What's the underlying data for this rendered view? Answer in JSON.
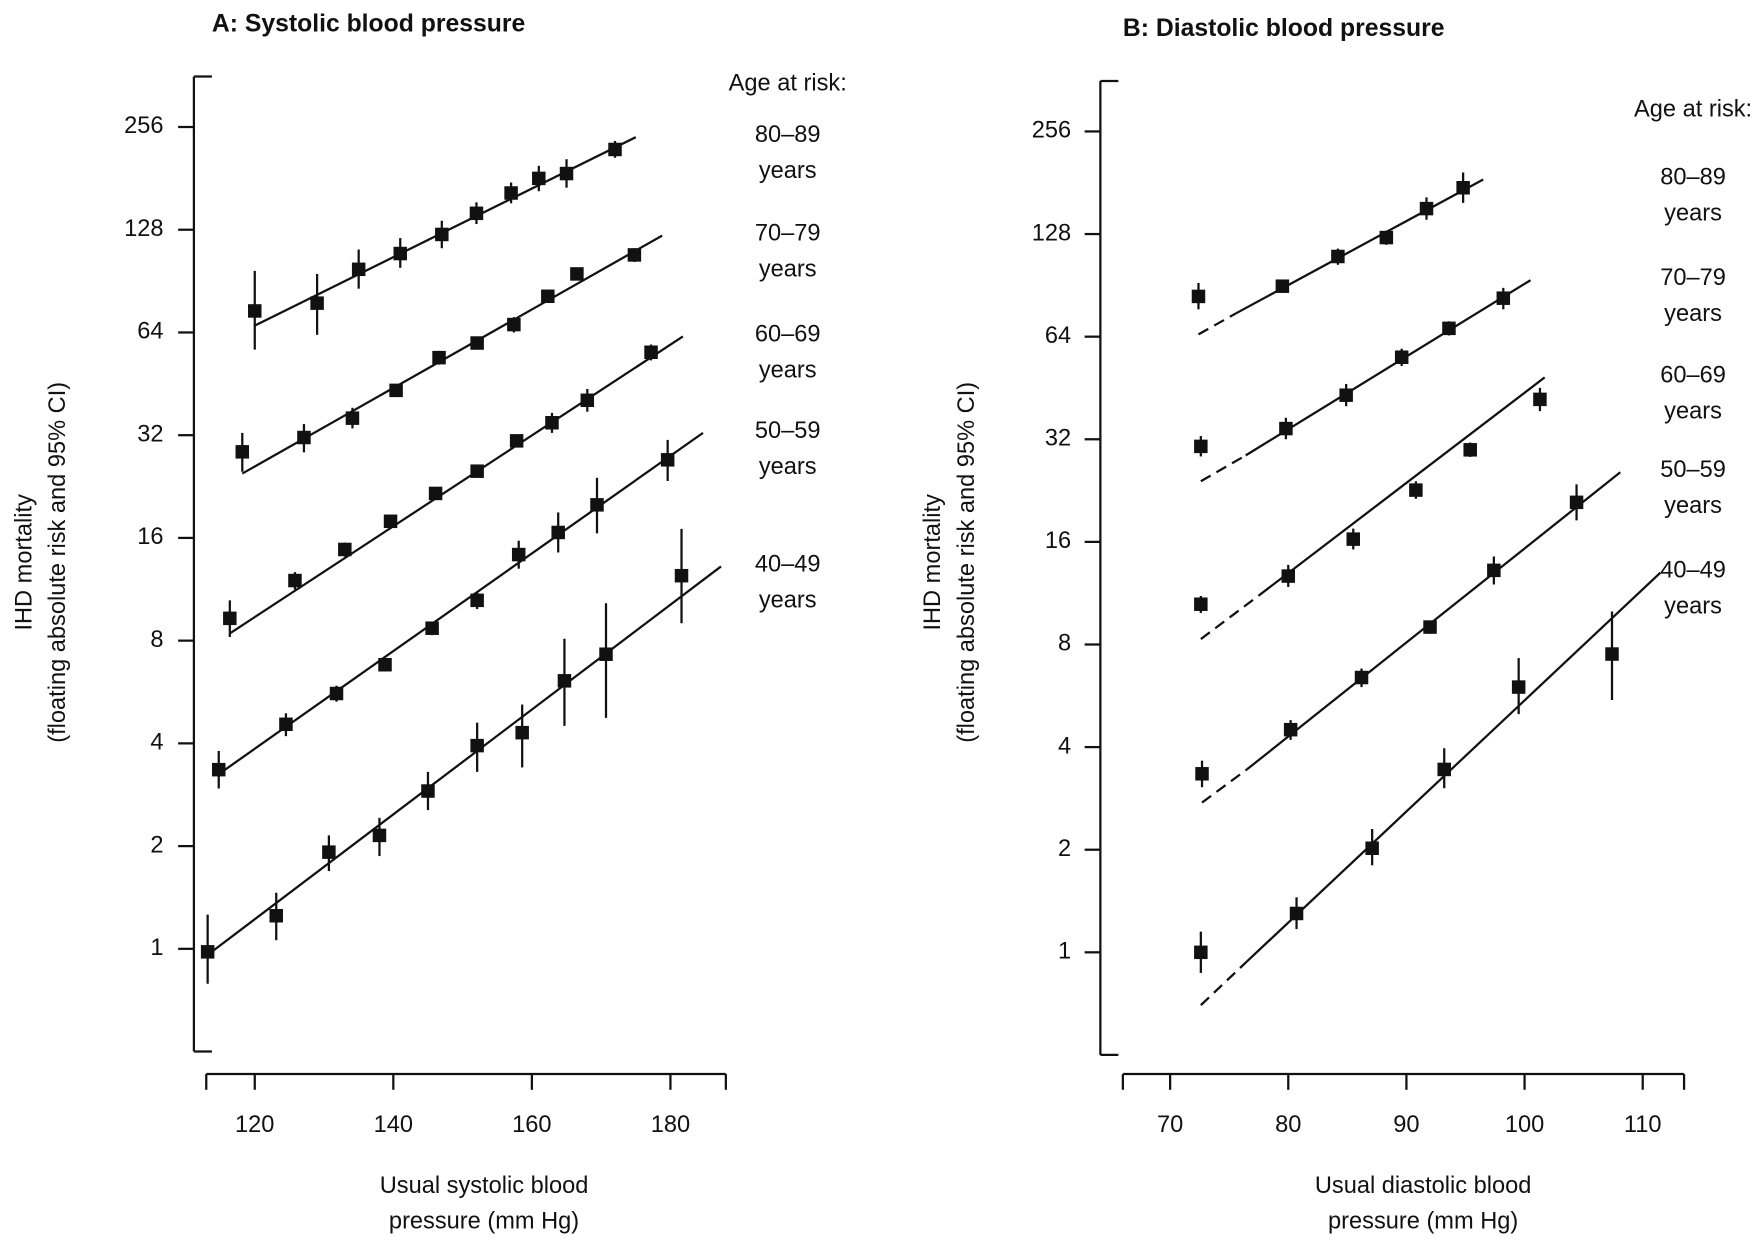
{
  "chart_data": [
    {
      "type": "scatter",
      "title": "A: Systolic blood pressure",
      "xlabel": [
        "Usual systolic blood",
        "pressure (mm Hg)"
      ],
      "ylabel": [
        "IHD mortality",
        "(floating absolute risk and 95% CI)"
      ],
      "legend_title": "Age at risk:",
      "log_y": 2,
      "xlim": [
        113,
        188
      ],
      "ylim": [
        0.5,
        360
      ],
      "xticks": [
        120,
        140,
        160,
        180
      ],
      "yticks": [
        1,
        2,
        4,
        8,
        16,
        32,
        64,
        128,
        256
      ],
      "color": "#111111",
      "series": [
        {
          "name": "80–89 years",
          "x": [
            120,
            129,
            135,
            141,
            147,
            152,
            157,
            161,
            165,
            172
          ],
          "values": [
            74,
            78,
            98,
            109,
            124,
            143,
            164,
            181,
            187,
            220
          ],
          "lower": [
            57,
            63,
            86,
            99,
            113,
            133,
            153,
            166,
            170,
            208
          ],
          "upper": [
            97,
            95,
            112,
            121,
            136,
            154,
            176,
            197,
            206,
            233
          ],
          "fit": {
            "x": [
              120,
              175
            ],
            "values": [
              67,
              239
            ]
          }
        },
        {
          "name": "70–79 years",
          "x": [
            118.2,
            127.1,
            134.1,
            140.4,
            146.6,
            152.1,
            157.4,
            162.3,
            166.5,
            174.8
          ],
          "values": [
            28.6,
            31.5,
            35.9,
            43.3,
            54,
            59.6,
            67.5,
            81.7,
            95,
            108
          ],
          "lower": [
            25,
            28.5,
            33.5,
            41.5,
            51.5,
            57,
            64,
            78.5,
            91,
            103
          ],
          "upper": [
            32.5,
            34.5,
            38.5,
            45,
            56.5,
            62,
            71,
            85,
            99,
            113
          ],
          "fit": {
            "x": [
              118.2,
              178.8
            ],
            "values": [
              24.7,
              123
            ]
          }
        },
        {
          "name": "60–69 years",
          "x": [
            116.4,
            125.8,
            133,
            139.6,
            146.1,
            152.1,
            157.8,
            162.9,
            168,
            177.2
          ],
          "values": [
            9.3,
            12,
            14.8,
            17.9,
            21.6,
            25.1,
            30.8,
            34.8,
            40.5,
            56
          ],
          "lower": [
            8.2,
            11.3,
            14.1,
            17.1,
            20.7,
            24.1,
            29.5,
            32.5,
            37.5,
            53
          ],
          "upper": [
            10.5,
            12.7,
            15.5,
            18.7,
            22.5,
            26.2,
            32.1,
            37.2,
            43.7,
            59
          ],
          "fit": {
            "x": [
              116.4,
              181.8
            ],
            "values": [
              8.4,
              62.3
            ]
          }
        },
        {
          "name": "50–59 years",
          "x": [
            114.8,
            124.5,
            131.8,
            138.8,
            145.6,
            152.1,
            158.1,
            163.8,
            169.4,
            179.6
          ],
          "values": [
            3.35,
            4.55,
            5.6,
            6.8,
            8.7,
            10.5,
            14.3,
            16.6,
            20,
            27.1
          ],
          "lower": [
            2.95,
            4.2,
            5.3,
            6.5,
            8.3,
            9.9,
            13,
            14.5,
            16.5,
            23.5
          ],
          "upper": [
            3.8,
            4.9,
            5.9,
            7.1,
            9.1,
            11.1,
            15.7,
            19,
            24,
            31
          ],
          "fit": {
            "x": [
              114.8,
              184.7
            ],
            "values": [
              3.25,
              32.5
            ]
          }
        },
        {
          "name": "40–49 years",
          "x": [
            113.2,
            123.1,
            130.7,
            138,
            145,
            152.1,
            158.6,
            164.7,
            170.7,
            181.6
          ],
          "values": [
            0.98,
            1.25,
            1.92,
            2.15,
            2.9,
            3.94,
            4.3,
            6.1,
            7.3,
            12.4
          ],
          "lower": [
            0.79,
            1.06,
            1.69,
            1.87,
            2.55,
            3.3,
            3.4,
            4.5,
            4.75,
            9
          ],
          "upper": [
            1.26,
            1.46,
            2.15,
            2.42,
            3.3,
            4.6,
            5.2,
            8.1,
            10.3,
            17
          ],
          "fit": {
            "x": [
              113.2,
              187.3
            ],
            "values": [
              0.96,
              13.2
            ]
          }
        }
      ]
    },
    {
      "type": "scatter",
      "title": "B: Diastolic blood pressure",
      "xlabel": [
        "Usual diastolic blood",
        "pressure (mm Hg)"
      ],
      "ylabel": [
        "IHD mortality",
        "(floating absolute risk and 95% CI)"
      ],
      "legend_title": "Age at risk:",
      "log_y": 2,
      "xlim": [
        66,
        113.5
      ],
      "ylim": [
        0.5,
        360
      ],
      "xticks": [
        70,
        80,
        90,
        100,
        110
      ],
      "yticks": [
        1,
        2,
        4,
        8,
        16,
        32,
        64,
        128,
        256
      ],
      "color": "#111111",
      "series": [
        {
          "name": "80–89 years",
          "x": [
            72.4,
            79.5,
            84.2,
            88.3,
            91.7,
            94.8
          ],
          "values": [
            84,
            90,
            110,
            125,
            152,
            175
          ],
          "lower": [
            77,
            86,
            104,
            119,
            141,
            158
          ],
          "upper": [
            92,
            94,
            116,
            131,
            164,
            194
          ],
          "fit_dashed": {
            "x": [
              72.4,
              75.6
            ],
            "values": [
              65,
              75
            ]
          },
          "fit": {
            "x": [
              75.6,
              96.5
            ],
            "values": [
              75,
              185
            ]
          }
        },
        {
          "name": "70–79 years",
          "x": [
            72.6,
            79.8,
            84.9,
            89.6,
            93.6,
            98.2
          ],
          "values": [
            30.5,
            34.4,
            43.1,
            55.7,
            67.7,
            83
          ],
          "lower": [
            28.5,
            32,
            40,
            52.5,
            64.5,
            77
          ],
          "upper": [
            32.7,
            37,
            46.5,
            59,
            71,
            89
          ],
          "fit_dashed": {
            "x": [
              72.6,
              76.4
            ],
            "values": [
              24.1,
              28.7
            ]
          },
          "fit": {
            "x": [
              76.4,
              100.5
            ],
            "values": [
              28.7,
              93.7
            ]
          }
        },
        {
          "name": "60–69 years",
          "x": [
            72.6,
            80,
            85.5,
            90.8,
            95.4,
            101.3
          ],
          "values": [
            10.5,
            12.7,
            16.3,
            22.7,
            29.8,
            41.9
          ],
          "lower": [
            9.9,
            11.8,
            15.2,
            21.4,
            28.4,
            38.7
          ],
          "upper": [
            11.1,
            13.7,
            17.5,
            24.1,
            31.3,
            45.3
          ],
          "fit_dashed": {
            "x": [
              72.6,
              77.6
            ],
            "values": [
              8.3,
              11.2
            ]
          },
          "fit": {
            "x": [
              77.6,
              101.7
            ],
            "values": [
              11.2,
              48.6
            ]
          }
        },
        {
          "name": "50–59 years",
          "x": [
            72.7,
            80.2,
            86.2,
            92,
            97.4,
            104.4
          ],
          "values": [
            3.34,
            4.5,
            6.4,
            9,
            13.2,
            20.9
          ],
          "lower": [
            3.05,
            4.2,
            6,
            8.6,
            12,
            18.5
          ],
          "upper": [
            3.65,
            4.8,
            6.8,
            9.4,
            14.5,
            23.6
          ],
          "fit_dashed": {
            "x": [
              72.7,
              76.5
            ],
            "values": [
              2.75,
              3.44
            ]
          },
          "fit": {
            "x": [
              76.5,
              108.1
            ],
            "values": [
              3.44,
              25.6
            ]
          }
        },
        {
          "name": "40–49 years",
          "x": [
            72.6,
            80.7,
            87.1,
            93.2,
            99.5,
            107.4
          ],
          "values": [
            1,
            1.3,
            2.02,
            3.44,
            6,
            7.5
          ],
          "lower": [
            0.87,
            1.17,
            1.8,
            3.03,
            5,
            5.5
          ],
          "upper": [
            1.15,
            1.45,
            2.3,
            3.97,
            7.3,
            10
          ],
          "fit_dashed": {
            "x": [
              72.6,
              76.5
            ],
            "values": [
              0.7,
              0.94
            ]
          },
          "fit": {
            "x": [
              76.5,
              111.5
            ],
            "values": [
              0.94,
              13
            ]
          }
        }
      ]
    }
  ]
}
